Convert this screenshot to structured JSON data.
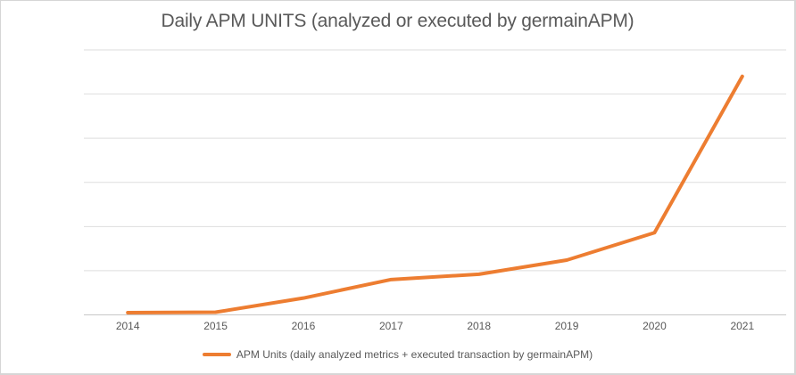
{
  "chart_data": {
    "type": "line",
    "title": "Daily APM UNITS (analyzed or executed by germainAPM)",
    "categories": [
      "2014",
      "2015",
      "2016",
      "2017",
      "2018",
      "2019",
      "2020",
      "2021"
    ],
    "series": [
      {
        "name": "APM Units (daily analyzed metrics + executed transaction by germainAPM)",
        "values": [
          0.05,
          0.06,
          0.38,
          0.8,
          0.92,
          1.24,
          1.86,
          5.4
        ]
      }
    ],
    "xlabel": "",
    "ylabel": "",
    "ylim": [
      0,
      6
    ],
    "y_gridline_step": 1,
    "y_tick_labels_visible": false,
    "grid": "horizontal-only",
    "legend_position": "bottom-center",
    "value_units": "relative gridline units (y axis is unlabeled; 1.0 = one gridline interval)"
  },
  "colors": {
    "line": "#ED7D31",
    "gridline": "#DEDEDE",
    "axis_line": "#C7C7C7",
    "text": "#595959",
    "background": "#FFFFFF",
    "border": "#D6D6D6"
  }
}
